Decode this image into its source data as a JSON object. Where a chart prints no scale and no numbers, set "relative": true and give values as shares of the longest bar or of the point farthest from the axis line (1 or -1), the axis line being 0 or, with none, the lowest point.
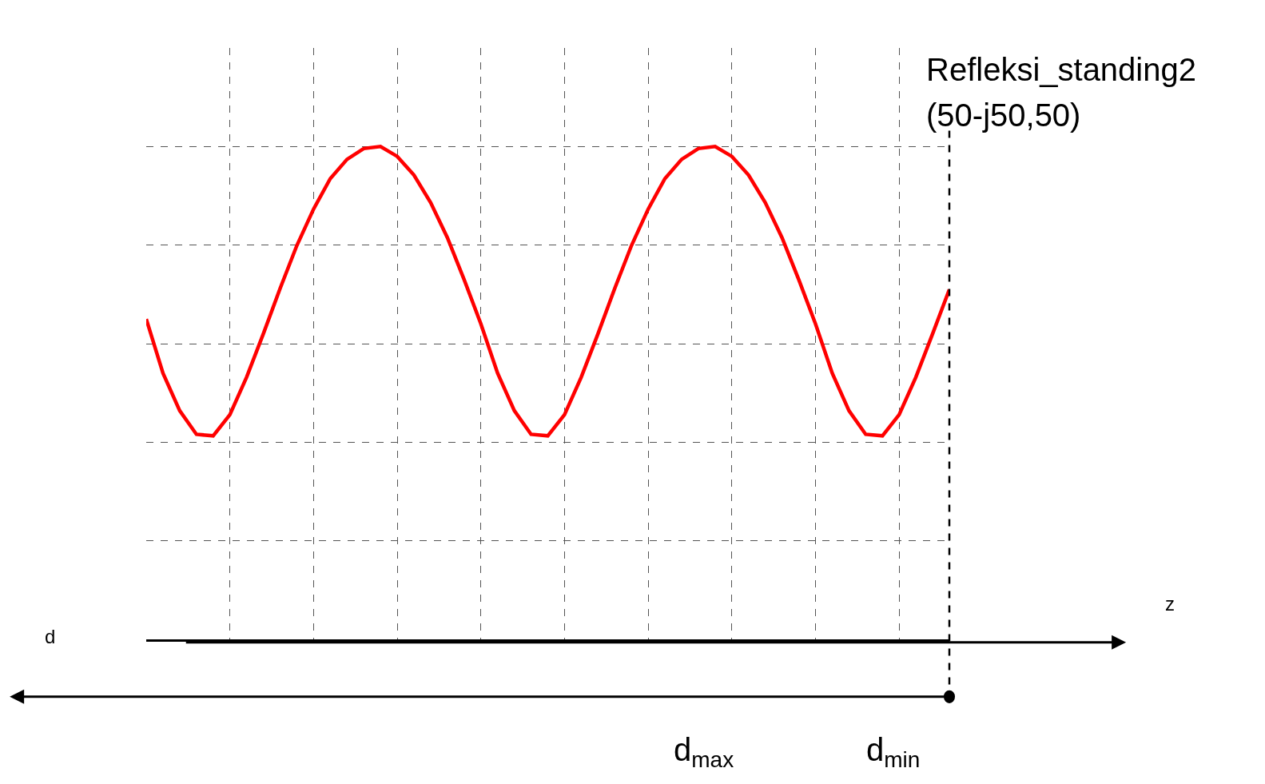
{
  "chart_data": {
    "type": "line",
    "relative": true,
    "grid": true,
    "marker": "none",
    "line_style": "solid",
    "categories": [
      null,
      null,
      null,
      null,
      null,
      null,
      null,
      null,
      null,
      null,
      null,
      null,
      null,
      null,
      null,
      null,
      null,
      null,
      null,
      null,
      null,
      null,
      null,
      null,
      null,
      null,
      null,
      null,
      null,
      null,
      null,
      null,
      null,
      null,
      null,
      null,
      null,
      null,
      null,
      null,
      null,
      null,
      null,
      null,
      null,
      null,
      null,
      null,
      null
    ],
    "series": [
      {
        "color": "#ff0000",
        "values": [
          0.65,
          0.54,
          0.464,
          0.416,
          0.413,
          0.456,
          0.532,
          0.62,
          0.712,
          0.799,
          0.873,
          0.935,
          0.974,
          0.996,
          1,
          0.98,
          0.942,
          0.886,
          0.815,
          0.73,
          0.64,
          0.54,
          0.464,
          0.416,
          0.413,
          0.456,
          0.532,
          0.62,
          0.712,
          0.799,
          0.873,
          0.935,
          0.974,
          0.996,
          1,
          0.98,
          0.942,
          0.886,
          0.815,
          0.73,
          0.64,
          0.54,
          0.464,
          0.416,
          0.413,
          0.456,
          0.532,
          0.62,
          0.71
        ]
      }
    ],
    "annotations": [
      "Refleksi_standing2",
      "(50-j50,50)",
      "z",
      "d",
      "d$_{max}$",
      "d$_{min}$"
    ]
  }
}
